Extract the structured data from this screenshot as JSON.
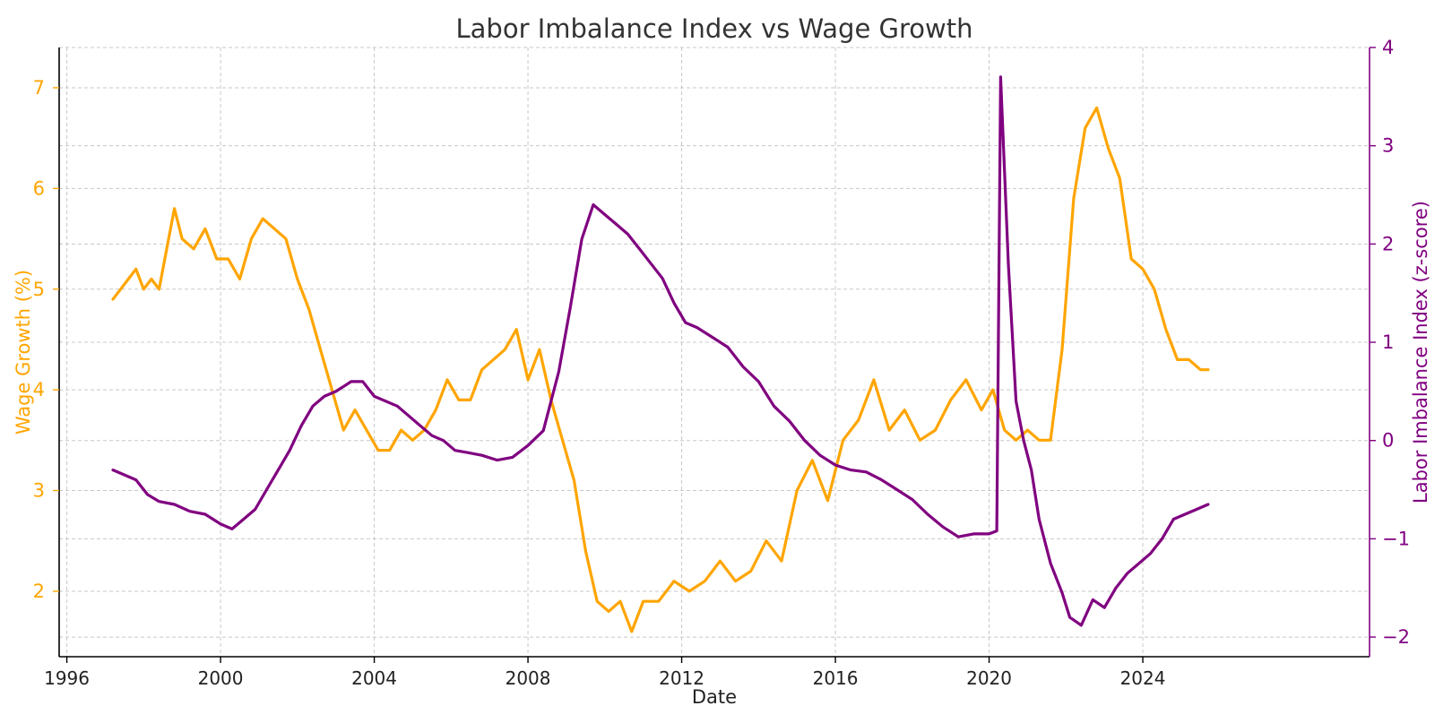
{
  "chart_data": {
    "type": "line",
    "title": "Labor Imbalance Index vs Wage Growth",
    "xlabel": "Date",
    "ylabel_left": "Wage Growth (%)",
    "ylabel_right": "Labor Imbalance Index (z-score)",
    "xlim": [
      1995.8,
      2029.9
    ],
    "ylim_left": [
      1.35,
      7.4
    ],
    "ylim_right": [
      -2.2,
      4.0
    ],
    "x_ticks": [
      1996,
      2000,
      2004,
      2008,
      2012,
      2016,
      2020,
      2024
    ],
    "x_tick_labels": [
      "1996",
      "2000",
      "2004",
      "2008",
      "2012",
      "2016",
      "2020",
      "2024"
    ],
    "y_left_ticks": [
      2,
      3,
      4,
      5,
      6,
      7
    ],
    "y_left_tick_labels": [
      "2",
      "3",
      "4",
      "5",
      "6",
      "7"
    ],
    "y_right_ticks": [
      -2,
      -1,
      0,
      1,
      2,
      3,
      4
    ],
    "y_right_tick_labels": [
      "−2",
      "−1",
      "0",
      "1",
      "2",
      "3",
      "4"
    ],
    "grid": true,
    "colors": {
      "wage": "#FFA500",
      "imbalance": "#800080",
      "text": "#333333"
    },
    "series": [
      {
        "name": "Wage Growth (%)",
        "axis": "left",
        "color": "#FFA500",
        "x": [
          1997.2,
          1997.4,
          1997.6,
          1997.8,
          1998.0,
          1998.2,
          1998.4,
          1998.6,
          1998.8,
          1999.0,
          1999.3,
          1999.6,
          1999.9,
          2000.2,
          2000.5,
          2000.8,
          2001.1,
          2001.4,
          2001.7,
          2002.0,
          2002.3,
          2002.6,
          2002.9,
          2003.2,
          2003.5,
          2003.8,
          2004.1,
          2004.4,
          2004.7,
          2005.0,
          2005.3,
          2005.6,
          2005.9,
          2006.2,
          2006.5,
          2006.8,
          2007.1,
          2007.4,
          2007.7,
          2008.0,
          2008.3,
          2008.6,
          2008.9,
          2009.2,
          2009.5,
          2009.8,
          2010.1,
          2010.4,
          2010.7,
          2011.0,
          2011.4,
          2011.8,
          2012.2,
          2012.6,
          2013.0,
          2013.4,
          2013.8,
          2014.2,
          2014.6,
          2015.0,
          2015.4,
          2015.8,
          2016.2,
          2016.6,
          2017.0,
          2017.4,
          2017.8,
          2018.2,
          2018.6,
          2019.0,
          2019.4,
          2019.8,
          2020.1,
          2020.4,
          2020.7,
          2021.0,
          2021.3,
          2021.6,
          2021.9,
          2022.2,
          2022.5,
          2022.8,
          2023.1,
          2023.4,
          2023.7,
          2024.0,
          2024.3,
          2024.6,
          2024.9,
          2025.2,
          2025.5,
          2025.7
        ],
        "y": [
          4.9,
          5.0,
          5.1,
          5.2,
          5.0,
          5.1,
          5.0,
          5.4,
          5.8,
          5.5,
          5.4,
          5.6,
          5.3,
          5.3,
          5.1,
          5.5,
          5.7,
          5.6,
          5.5,
          5.1,
          4.8,
          4.4,
          4.0,
          3.6,
          3.8,
          3.6,
          3.4,
          3.4,
          3.6,
          3.5,
          3.6,
          3.8,
          4.1,
          3.9,
          3.9,
          4.2,
          4.3,
          4.4,
          4.6,
          4.1,
          4.4,
          3.9,
          3.5,
          3.1,
          2.4,
          1.9,
          1.8,
          1.9,
          1.6,
          1.9,
          1.9,
          2.1,
          2.0,
          2.1,
          2.3,
          2.1,
          2.2,
          2.5,
          2.3,
          3.0,
          3.3,
          2.9,
          3.5,
          3.7,
          4.1,
          3.6,
          3.8,
          3.5,
          3.6,
          3.9,
          4.1,
          3.8,
          4.0,
          3.6,
          3.5,
          3.6,
          3.5,
          3.5,
          4.4,
          5.9,
          6.6,
          6.8,
          6.4,
          6.1,
          5.3,
          5.2,
          5.0,
          4.6,
          4.3,
          4.3,
          4.2,
          4.2
        ]
      },
      {
        "name": "Labor Imbalance Index (z-score)",
        "axis": "right",
        "color": "#800080",
        "x": [
          1997.2,
          1997.5,
          1997.8,
          1998.1,
          1998.4,
          1998.8,
          1999.2,
          1999.6,
          2000.0,
          2000.3,
          2000.6,
          2000.9,
          2001.2,
          2001.5,
          2001.8,
          2002.1,
          2002.4,
          2002.7,
          2003.0,
          2003.4,
          2003.7,
          2004.0,
          2004.3,
          2004.6,
          2004.9,
          2005.2,
          2005.5,
          2005.8,
          2006.1,
          2006.4,
          2006.8,
          2007.2,
          2007.6,
          2008.0,
          2008.4,
          2008.8,
          2009.1,
          2009.4,
          2009.7,
          2010.0,
          2010.3,
          2010.6,
          2010.9,
          2011.2,
          2011.5,
          2011.8,
          2012.1,
          2012.4,
          2012.8,
          2013.2,
          2013.6,
          2014.0,
          2014.4,
          2014.8,
          2015.2,
          2015.6,
          2016.0,
          2016.4,
          2016.8,
          2017.2,
          2017.6,
          2018.0,
          2018.4,
          2018.8,
          2019.2,
          2019.6,
          2020.0,
          2020.2,
          2020.3,
          2020.5,
          2020.7,
          2020.9,
          2021.1,
          2021.3,
          2021.6,
          2021.9,
          2022.1,
          2022.4,
          2022.7,
          2023.0,
          2023.3,
          2023.6,
          2023.9,
          2024.2,
          2024.5,
          2024.8,
          2025.1,
          2025.4,
          2025.7
        ],
        "y": [
          -0.3,
          -0.35,
          -0.4,
          -0.55,
          -0.62,
          -0.65,
          -0.72,
          -0.75,
          -0.85,
          -0.9,
          -0.8,
          -0.7,
          -0.5,
          -0.3,
          -0.1,
          0.15,
          0.35,
          0.45,
          0.5,
          0.6,
          0.6,
          0.45,
          0.4,
          0.35,
          0.25,
          0.15,
          0.05,
          0.0,
          -0.1,
          -0.12,
          -0.15,
          -0.2,
          -0.17,
          -0.05,
          0.1,
          0.7,
          1.35,
          2.05,
          2.4,
          2.3,
          2.2,
          2.1,
          1.95,
          1.8,
          1.65,
          1.4,
          1.2,
          1.15,
          1.05,
          0.95,
          0.75,
          0.6,
          0.35,
          0.2,
          0.0,
          -0.15,
          -0.25,
          -0.3,
          -0.32,
          -0.4,
          -0.5,
          -0.6,
          -0.75,
          -0.88,
          -0.98,
          -0.95,
          -0.95,
          -0.92,
          3.7,
          1.8,
          0.4,
          0.0,
          -0.3,
          -0.8,
          -1.25,
          -1.55,
          -1.8,
          -1.88,
          -1.62,
          -1.7,
          -1.5,
          -1.35,
          -1.25,
          -1.15,
          -1.0,
          -0.8,
          -0.75,
          -0.7,
          -0.65
        ]
      }
    ]
  }
}
